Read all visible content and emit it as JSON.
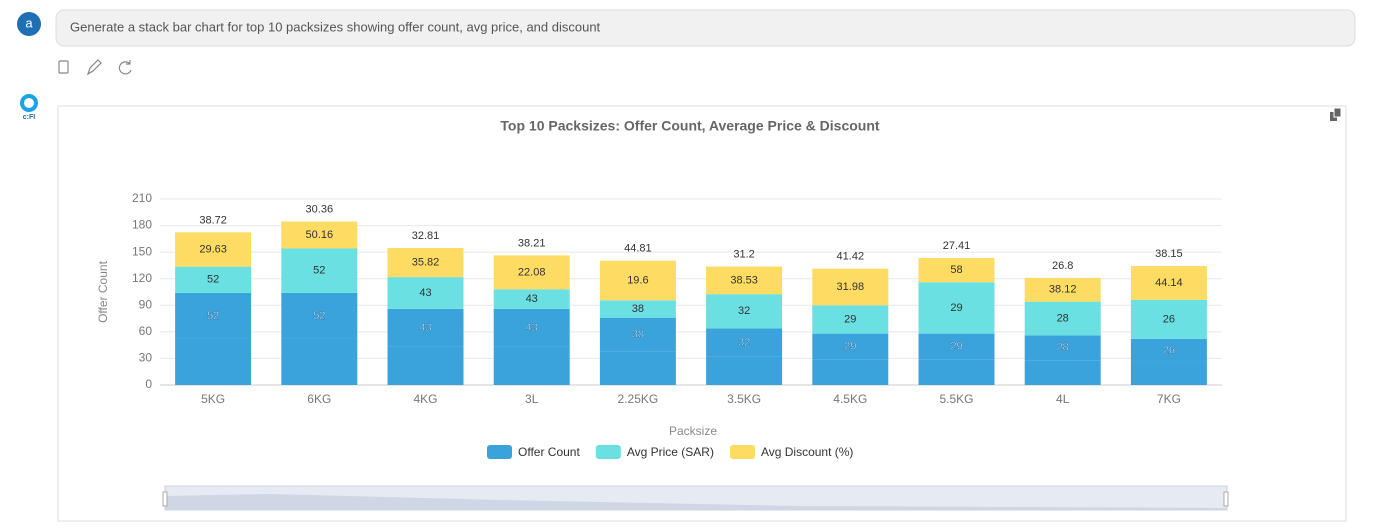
{
  "user": {
    "avatar": "a",
    "prompt": "Generate a stack bar chart for top 10 packsizes showing offer count, avg price, and discount"
  },
  "assistant": {
    "logo": "c:FI"
  },
  "chart_data": {
    "type": "stacked-bar",
    "title": "Top 10 Packsizes: Offer Count, Average Price & Discount",
    "x_label": "Packsize",
    "y_label": "Offer Count",
    "categories": [
      "5KG",
      "6KG",
      "4KG",
      "3L",
      "2.25KG",
      "3.5KG",
      "4.5KG",
      "5.5KG",
      "4L",
      "7KG"
    ],
    "series": [
      {
        "name": "Offer Count",
        "color": "#3ba3dc",
        "values": [
          52,
          52,
          43,
          43,
          38,
          32,
          29,
          29,
          28,
          26
        ]
      },
      {
        "color": "#3ba3dc",
        "values": [
          52,
          52,
          43,
          43,
          38,
          32,
          29,
          29,
          28,
          26
        ]
      },
      {
        "name": "Avg Price (SAR)",
        "color": "#6be0e2",
        "values": [
          29.63,
          50.16,
          35.82,
          22.08,
          19.6,
          38.53,
          31.98,
          58,
          38.12,
          44.14
        ]
      },
      {
        "name": "Avg Discount (%)",
        "color": "#fedb62",
        "values": [
          38.72,
          30.36,
          32.81,
          38.21,
          44.81,
          31.2,
          41.42,
          27.41,
          26.8,
          38.15
        ]
      }
    ],
    "ylim": [
      0,
      210
    ],
    "yticks": [
      0,
      30,
      60,
      90,
      120,
      150,
      180,
      210
    ],
    "grid": true,
    "legend": "bottom"
  }
}
